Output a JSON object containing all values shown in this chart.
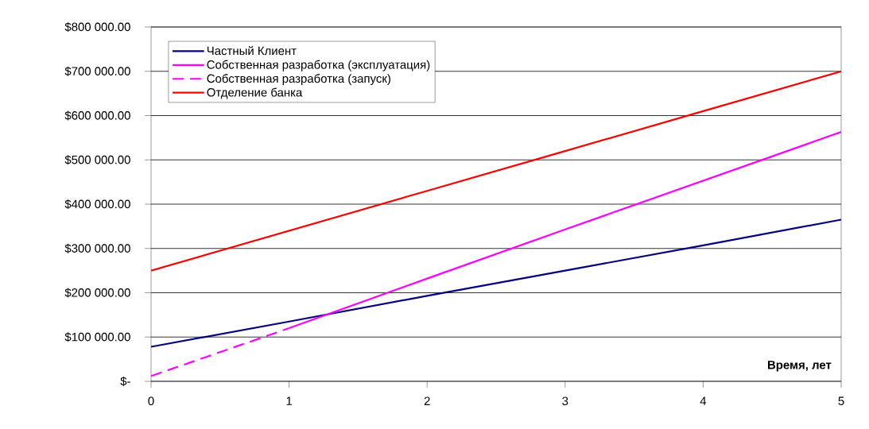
{
  "chart_data": {
    "type": "line",
    "xlabel": "**Время, лет**",
    "xlim": [
      0,
      5
    ],
    "xticks": [
      0,
      1,
      2,
      3,
      4,
      5
    ],
    "ylim": [
      0,
      800000
    ],
    "yticks": [
      {
        "value": 0,
        "label": "$-"
      },
      {
        "value": 100000,
        "label": "$100 000.00"
      },
      {
        "value": 200000,
        "label": "$200 000.00"
      },
      {
        "value": 300000,
        "label": "$300 000.00"
      },
      {
        "value": 400000,
        "label": "$400 000.00"
      },
      {
        "value": 500000,
        "label": "$500 000.00"
      },
      {
        "value": 600000,
        "label": "$600 000.00"
      },
      {
        "value": 700000,
        "label": "$700 000.00"
      },
      {
        "value": 800000,
        "label": "$800 000.00"
      }
    ],
    "grid": "y",
    "legend": "top left",
    "marker": "none",
    "series": [
      {
        "name": "Частный Клиент",
        "color": "#000080",
        "x": [
          0,
          1,
          2,
          3,
          4,
          5
        ],
        "values": [
          78000,
          135000,
          193000,
          250000,
          307000,
          365000
        ],
        "line_style": "solid"
      },
      {
        "name": "Собственная разработка (эксплуатация)",
        "color": "#ff00ff",
        "x": [
          1,
          2,
          3,
          4,
          5
        ],
        "values": [
          120000,
          232000,
          343000,
          453000,
          563000
        ],
        "line_style": "solid"
      },
      {
        "name": "Собственная разработка (запуск)",
        "color": "#ff00ff",
        "x": [
          0,
          1
        ],
        "values": [
          12000,
          120000
        ],
        "line_style": "dashed"
      },
      {
        "name": "Отделение банка",
        "color": "#ff0000",
        "x": [
          0,
          1,
          2,
          3,
          4,
          5
        ],
        "values": [
          250000,
          340000,
          430000,
          520000,
          610000,
          700000
        ],
        "line_style": "solid"
      }
    ]
  }
}
